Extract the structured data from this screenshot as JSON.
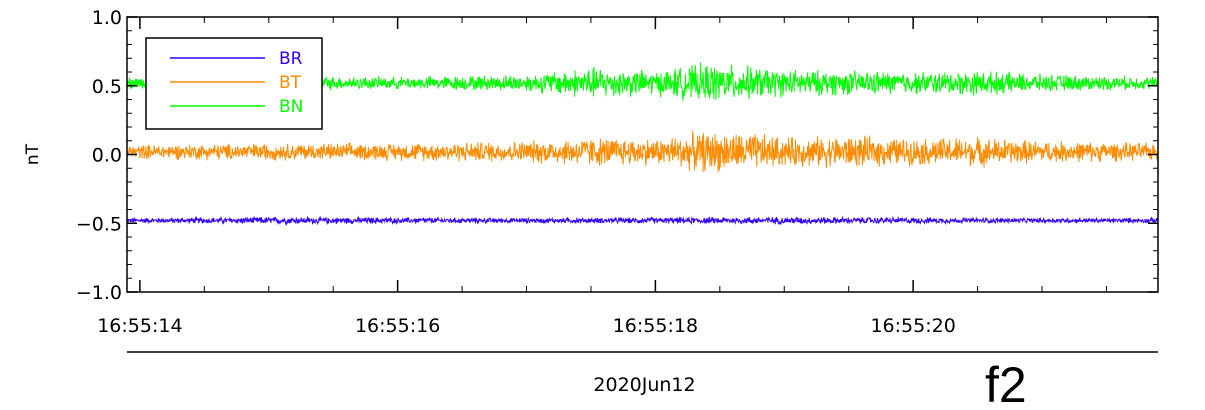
{
  "chart_data": {
    "type": "line",
    "title": "",
    "xlabel": "",
    "ylabel": "nT",
    "date_label": "2020Jun12",
    "panel_tag": "f2",
    "xlim": [
      "16:55:13.9",
      "16:55:21.9"
    ],
    "ylim": [
      -1.0,
      1.0
    ],
    "x_ticks": [
      "16:55:14",
      "16:55:16",
      "16:55:18",
      "16:55:20"
    ],
    "y_ticks": [
      "1.0",
      "0.5",
      "0.0",
      "−0.5",
      "−1.0"
    ],
    "grid": false,
    "legend_position": "top-left",
    "legend": [
      {
        "name": "BR",
        "color": "#3300ff"
      },
      {
        "name": "BT",
        "color": "#ff8c00"
      },
      {
        "name": "BN",
        "color": "#00ff00"
      }
    ],
    "series": [
      {
        "name": "BR",
        "color": "#3300ff",
        "baseline": -0.48,
        "x": [
          "16:55:14",
          "16:55:15",
          "16:55:16",
          "16:55:17",
          "16:55:18",
          "16:55:19",
          "16:55:20",
          "16:55:21",
          "16:55:21.9"
        ],
        "amplitude": [
          0.02,
          0.03,
          0.025,
          0.02,
          0.025,
          0.03,
          0.025,
          0.02,
          0.02
        ]
      },
      {
        "name": "BT",
        "color": "#ff8c00",
        "baseline": 0.02,
        "x": [
          "16:55:14",
          "16:55:15",
          "16:55:16",
          "16:55:16.5",
          "16:55:17",
          "16:55:17.5",
          "16:55:18",
          "16:55:18.4",
          "16:55:18.8",
          "16:55:19",
          "16:55:19.5",
          "16:55:20",
          "16:55:20.5",
          "16:55:21",
          "16:55:21.9"
        ],
        "amplitude": [
          0.06,
          0.07,
          0.07,
          0.08,
          0.09,
          0.12,
          0.11,
          0.17,
          0.15,
          0.12,
          0.13,
          0.11,
          0.12,
          0.09,
          0.07
        ]
      },
      {
        "name": "BN",
        "color": "#00ff00",
        "baseline": 0.52,
        "x": [
          "16:55:14",
          "16:55:15",
          "16:55:16",
          "16:55:16.5",
          "16:55:17",
          "16:55:17.5",
          "16:55:18",
          "16:55:18.4",
          "16:55:18.8",
          "16:55:19",
          "16:55:19.5",
          "16:55:20",
          "16:55:20.5",
          "16:55:21",
          "16:55:21.9"
        ],
        "amplitude": [
          0.05,
          0.06,
          0.05,
          0.06,
          0.07,
          0.13,
          0.1,
          0.16,
          0.13,
          0.11,
          0.1,
          0.09,
          0.1,
          0.07,
          0.05
        ]
      }
    ]
  }
}
